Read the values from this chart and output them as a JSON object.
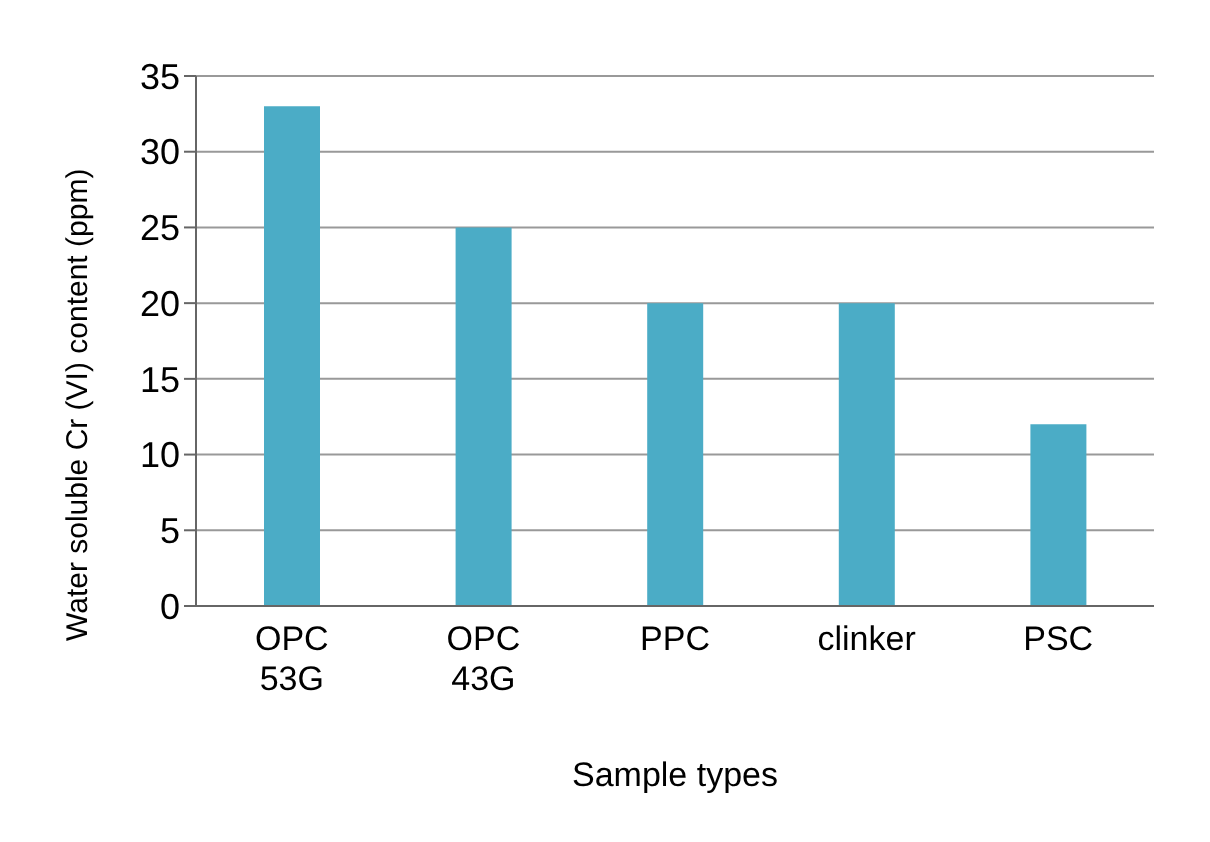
{
  "chart_data": {
    "type": "bar",
    "xlabel": "Sample types",
    "ylabel": "Water soluble Cr (VI) content (ppm)",
    "categories": [
      "OPC 53G",
      "OPC 43G",
      "PPC",
      "clinker",
      "PSC"
    ],
    "values": [
      33,
      25,
      20,
      20,
      12
    ],
    "color": "#4bacc6",
    "ylim": [
      0,
      35
    ],
    "yticks": [
      0,
      5,
      10,
      15,
      20,
      25,
      30,
      35
    ],
    "grid": "y"
  }
}
